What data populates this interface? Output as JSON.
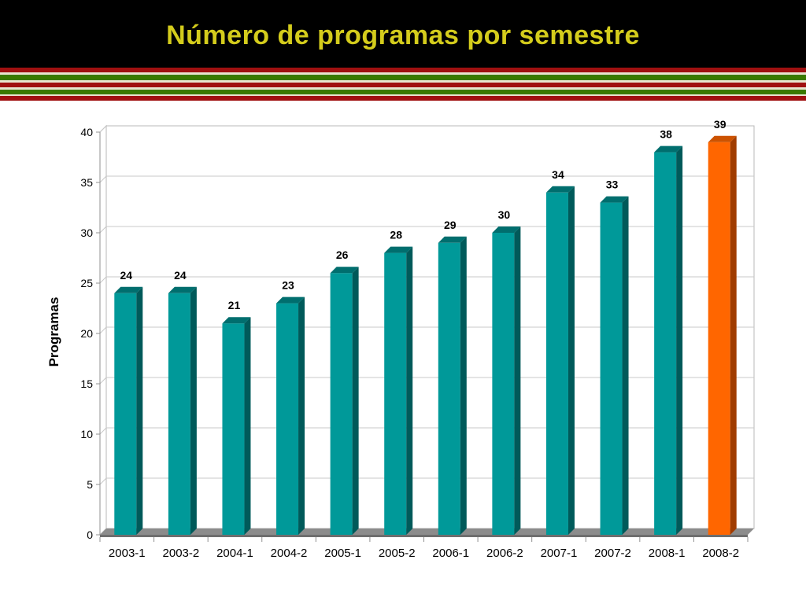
{
  "slide": {
    "title": "Número de programas por semestre"
  },
  "colors": {
    "header_bg": "#000000",
    "title": "#d4cc1c",
    "bar_front": "#009999",
    "bar_side": "#005a5a",
    "bar_top": "#006e6e",
    "highlight_front": "#ff6600",
    "highlight_side": "#a03c00",
    "highlight_top": "#cc5200",
    "stripe_red": "#a01010",
    "stripe_green": "#3a7a00",
    "stripe_light": "#e8e4d0"
  },
  "chart_data": {
    "type": "bar",
    "title": "Número de programas por semestre",
    "xlabel": "",
    "ylabel": "Programas",
    "categories": [
      "2003-1",
      "2003-2",
      "2004-1",
      "2004-2",
      "2005-1",
      "2005-2",
      "2006-1",
      "2006-2",
      "2007-1",
      "2007-2",
      "2008-1",
      "2008-2"
    ],
    "values": [
      24,
      24,
      21,
      23,
      26,
      28,
      29,
      30,
      34,
      33,
      38,
      39
    ],
    "ylim": [
      0,
      40
    ],
    "yticks": [
      0,
      5,
      10,
      15,
      20,
      25,
      30,
      35,
      40
    ],
    "grid": true,
    "legend": "none",
    "highlight_index": 11,
    "style": "3d-column"
  }
}
